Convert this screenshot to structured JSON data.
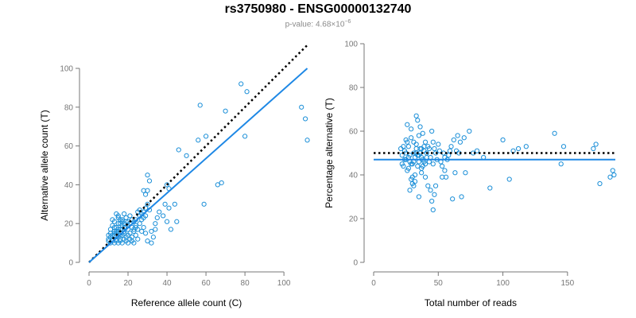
{
  "title": "rs3750980 - ENSG00000132740",
  "subtitle": {
    "prefix": "p-value: 4.68×10",
    "exponent": "−6"
  },
  "colors": {
    "points": "#1b8fd8",
    "fit": "#1e88e5",
    "reference": "#000000",
    "axis": "#777777"
  },
  "chart_data": [
    {
      "type": "scatter",
      "xlabel": "Reference allele count (C)",
      "ylabel": "Alternative allele count (T)",
      "xlim": [
        0,
        113
      ],
      "ylim": [
        0,
        100
      ],
      "xticks": [
        0,
        20,
        40,
        60,
        80,
        100
      ],
      "yticks": [
        0,
        20,
        40,
        60,
        80,
        100
      ],
      "reference_line": {
        "style": "dotted",
        "from": [
          0,
          0
        ],
        "to": [
          112,
          112
        ]
      },
      "fit_line": {
        "style": "solid",
        "from": [
          0,
          0
        ],
        "to": [
          112,
          100
        ]
      },
      "points": [
        [
          10,
          11
        ],
        [
          11,
          13
        ],
        [
          12,
          12
        ],
        [
          13,
          15
        ],
        [
          14,
          11
        ],
        [
          15,
          13
        ],
        [
          16,
          12
        ],
        [
          17,
          14
        ],
        [
          18,
          15
        ],
        [
          19,
          13
        ],
        [
          11,
          17
        ],
        [
          12,
          19
        ],
        [
          13,
          16
        ],
        [
          14,
          18
        ],
        [
          15,
          20
        ],
        [
          16,
          17
        ],
        [
          17,
          19
        ],
        [
          18,
          16
        ],
        [
          19,
          18
        ],
        [
          20,
          17
        ],
        [
          12,
          22
        ],
        [
          13,
          21
        ],
        [
          15,
          23
        ],
        [
          17,
          22
        ],
        [
          18,
          25
        ],
        [
          20,
          21
        ],
        [
          21,
          24
        ],
        [
          14,
          25
        ],
        [
          16,
          20
        ],
        [
          19,
          23
        ],
        [
          10,
          12
        ],
        [
          11,
          10
        ],
        [
          12,
          11
        ],
        [
          13,
          10
        ],
        [
          14,
          12
        ],
        [
          15,
          10
        ],
        [
          16,
          11
        ],
        [
          17,
          10
        ],
        [
          18,
          12
        ],
        [
          19,
          11
        ],
        [
          20,
          10
        ],
        [
          21,
          12
        ],
        [
          22,
          11
        ],
        [
          23,
          10
        ],
        [
          20,
          14
        ],
        [
          21,
          15
        ],
        [
          22,
          13
        ],
        [
          23,
          16
        ],
        [
          24,
          14
        ],
        [
          25,
          12
        ],
        [
          13,
          14
        ],
        [
          14,
          15
        ],
        [
          15,
          16
        ],
        [
          16,
          15
        ],
        [
          17,
          17
        ],
        [
          18,
          18
        ],
        [
          16,
          14
        ],
        [
          15,
          17
        ],
        [
          14,
          16
        ],
        [
          13,
          18
        ],
        [
          24,
          19
        ],
        [
          25,
          17
        ],
        [
          26,
          20
        ],
        [
          27,
          16
        ],
        [
          28,
          18
        ],
        [
          29,
          15
        ],
        [
          26,
          24
        ],
        [
          27,
          22
        ],
        [
          30,
          11
        ],
        [
          32,
          10
        ],
        [
          28,
          26
        ],
        [
          29,
          28
        ],
        [
          30,
          30
        ],
        [
          31,
          27
        ],
        [
          29,
          35
        ],
        [
          30,
          37
        ],
        [
          28,
          37
        ],
        [
          30,
          45
        ],
        [
          31,
          42
        ],
        [
          29,
          24
        ],
        [
          32,
          16
        ],
        [
          33,
          13
        ],
        [
          34,
          20
        ],
        [
          35,
          23
        ],
        [
          36,
          26
        ],
        [
          34,
          17
        ],
        [
          38,
          24
        ],
        [
          40,
          21
        ],
        [
          41,
          28
        ],
        [
          42,
          17
        ],
        [
          39,
          30
        ],
        [
          40,
          40
        ],
        [
          41,
          38
        ],
        [
          44,
          30
        ],
        [
          45,
          21
        ],
        [
          46,
          58
        ],
        [
          50,
          55
        ],
        [
          56,
          63
        ],
        [
          57,
          81
        ],
        [
          59,
          30
        ],
        [
          60,
          65
        ],
        [
          66,
          40
        ],
        [
          68,
          41
        ],
        [
          70,
          78
        ],
        [
          78,
          92
        ],
        [
          80,
          65
        ],
        [
          81,
          88
        ],
        [
          109,
          80
        ],
        [
          111,
          74
        ],
        [
          112,
          63
        ],
        [
          10,
          14
        ],
        [
          11,
          15
        ],
        [
          12,
          14
        ],
        [
          22,
          18
        ],
        [
          23,
          17
        ],
        [
          24,
          18
        ],
        [
          25,
          26
        ],
        [
          26,
          27
        ],
        [
          27,
          25
        ],
        [
          28,
          23
        ],
        [
          20,
          19
        ],
        [
          21,
          20
        ],
        [
          22,
          22
        ],
        [
          19,
          21
        ],
        [
          18,
          20
        ],
        [
          17,
          21
        ],
        [
          16,
          22
        ],
        [
          15,
          24
        ],
        [
          23,
          21
        ],
        [
          24,
          22
        ]
      ]
    },
    {
      "type": "scatter",
      "xlabel": "Total number of reads",
      "ylabel": "Percentage alternative (T)",
      "xlim": [
        0,
        187
      ],
      "ylim": [
        0,
        100
      ],
      "xticks": [
        0,
        50,
        100,
        150
      ],
      "yticks": [
        0,
        20,
        40,
        60,
        80,
        100
      ],
      "reference_line": {
        "style": "dotted",
        "y": 50
      },
      "fit_line": {
        "style": "solid",
        "y": 47
      },
      "points": [
        [
          21,
          52
        ],
        [
          22,
          49
        ],
        [
          23,
          44
        ],
        [
          24,
          47
        ],
        [
          25,
          56
        ],
        [
          26,
          42
        ],
        [
          27,
          53
        ],
        [
          28,
          46
        ],
        [
          29,
          61
        ],
        [
          30,
          39
        ],
        [
          31,
          55
        ],
        [
          32,
          48
        ],
        [
          33,
          52
        ],
        [
          34,
          44
        ],
        [
          35,
          58
        ],
        [
          36,
          50
        ],
        [
          37,
          41
        ],
        [
          38,
          47
        ],
        [
          39,
          53
        ],
        [
          40,
          45
        ],
        [
          24,
          51
        ],
        [
          25,
          47
        ],
        [
          26,
          55
        ],
        [
          27,
          43
        ],
        [
          28,
          49
        ],
        [
          29,
          57
        ],
        [
          30,
          45
        ],
        [
          31,
          50
        ],
        [
          32,
          37
        ],
        [
          33,
          54
        ],
        [
          34,
          49
        ],
        [
          35,
          46
        ],
        [
          36,
          52
        ],
        [
          37,
          48
        ],
        [
          38,
          44
        ],
        [
          39,
          51
        ],
        [
          40,
          55
        ],
        [
          41,
          48
        ],
        [
          42,
          53
        ],
        [
          43,
          46
        ],
        [
          26,
          63
        ],
        [
          28,
          33
        ],
        [
          30,
          36
        ],
        [
          31,
          35
        ],
        [
          33,
          67
        ],
        [
          34,
          65
        ],
        [
          35,
          30
        ],
        [
          36,
          62
        ],
        [
          38,
          59
        ],
        [
          29,
          38
        ],
        [
          32,
          40
        ],
        [
          37,
          43
        ],
        [
          40,
          39
        ],
        [
          42,
          35
        ],
        [
          44,
          33
        ],
        [
          45,
          28
        ],
        [
          46,
          24
        ],
        [
          47,
          31
        ],
        [
          48,
          35
        ],
        [
          45,
          60
        ],
        [
          46,
          55
        ],
        [
          47,
          52
        ],
        [
          48,
          50
        ],
        [
          50,
          54
        ],
        [
          52,
          46
        ],
        [
          53,
          44
        ],
        [
          54,
          50
        ],
        [
          55,
          42
        ],
        [
          56,
          39
        ],
        [
          57,
          47
        ],
        [
          58,
          49
        ],
        [
          60,
          53
        ],
        [
          61,
          29
        ],
        [
          62,
          56
        ],
        [
          63,
          41
        ],
        [
          64,
          51
        ],
        [
          65,
          58
        ],
        [
          67,
          55
        ],
        [
          68,
          30
        ],
        [
          70,
          57
        ],
        [
          71,
          41
        ],
        [
          74,
          60
        ],
        [
          77,
          50
        ],
        [
          80,
          51
        ],
        [
          85,
          48
        ],
        [
          90,
          34
        ],
        [
          100,
          56
        ],
        [
          105,
          38
        ],
        [
          108,
          51
        ],
        [
          112,
          52
        ],
        [
          118,
          53
        ],
        [
          140,
          59
        ],
        [
          145,
          45
        ],
        [
          147,
          53
        ],
        [
          170,
          52
        ],
        [
          172,
          54
        ],
        [
          175,
          36
        ],
        [
          183,
          39
        ],
        [
          185,
          42
        ],
        [
          186,
          40
        ],
        [
          22,
          45
        ],
        [
          23,
          53
        ],
        [
          25,
          50
        ],
        [
          27,
          48
        ],
        [
          29,
          45
        ],
        [
          31,
          46
        ],
        [
          33,
          50
        ],
        [
          35,
          49
        ],
        [
          37,
          52
        ],
        [
          39,
          46
        ],
        [
          41,
          50
        ],
        [
          43,
          52
        ],
        [
          44,
          48
        ],
        [
          46,
          45
        ],
        [
          49,
          47
        ],
        [
          51,
          51
        ],
        [
          53,
          39
        ],
        [
          55,
          48
        ],
        [
          59,
          51
        ],
        [
          66,
          50
        ]
      ]
    }
  ]
}
